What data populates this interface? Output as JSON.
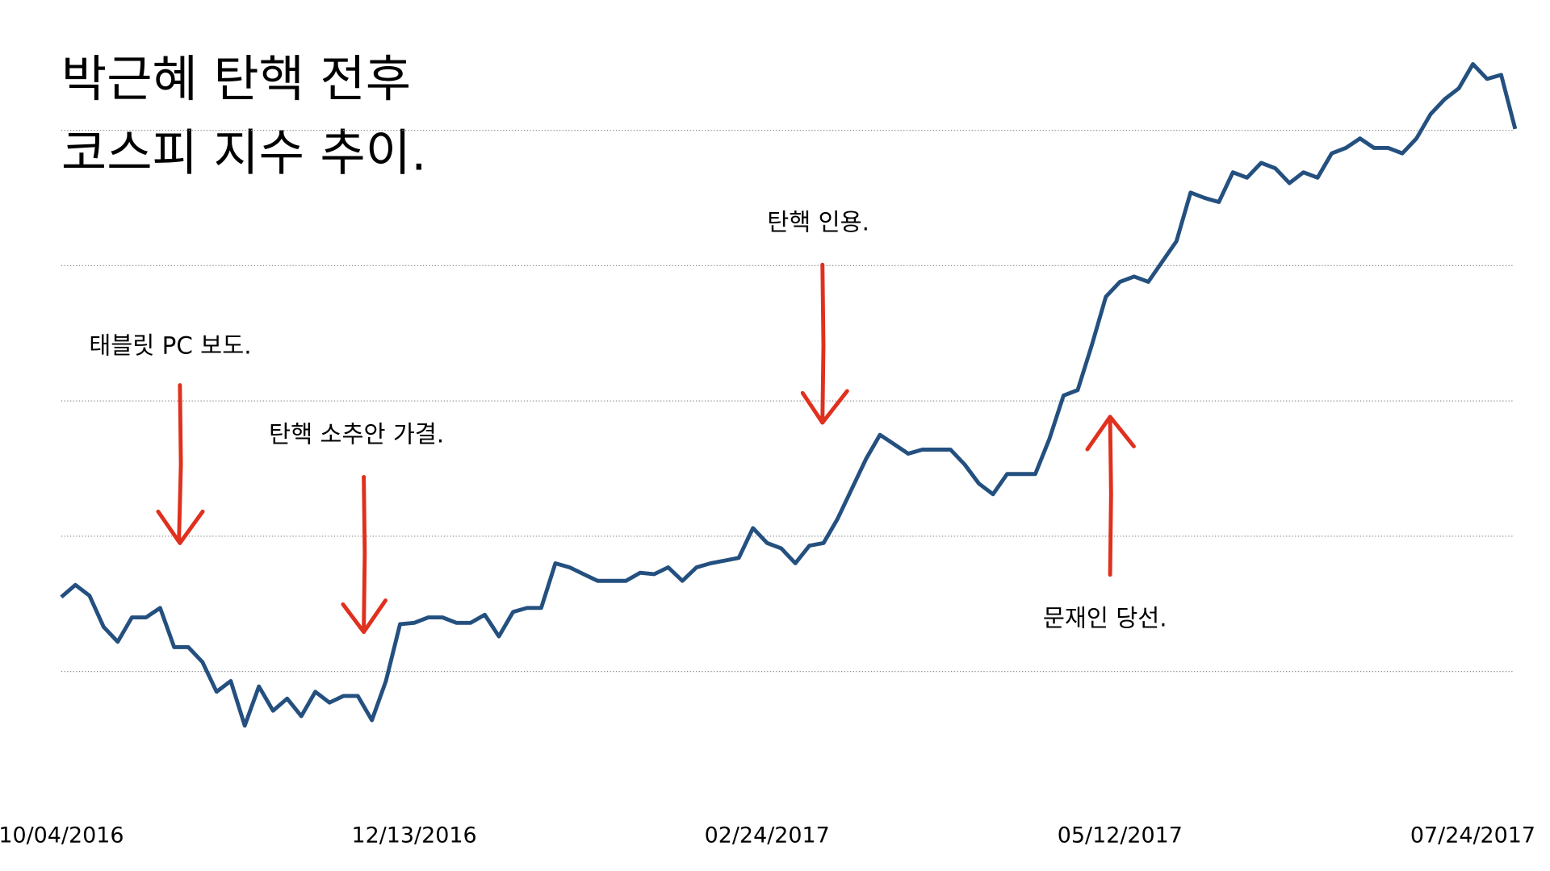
{
  "chart_data": {
    "type": "line",
    "title": [
      "박근혜 탄핵 전후",
      "코스피 지수 추이."
    ],
    "categories": [
      "10/04/2016",
      null,
      null,
      null,
      null,
      null,
      null,
      null,
      null,
      null,
      null,
      null,
      null,
      null,
      null,
      null,
      null,
      null,
      null,
      null,
      null,
      null,
      null,
      null,
      null,
      "12/13/2016",
      null,
      null,
      null,
      null,
      null,
      null,
      null,
      null,
      null,
      null,
      null,
      null,
      null,
      null,
      null,
      null,
      null,
      null,
      null,
      null,
      null,
      null,
      null,
      null,
      "02/24/2017",
      null,
      null,
      null,
      null,
      null,
      null,
      null,
      null,
      null,
      null,
      null,
      null,
      null,
      null,
      null,
      null,
      null,
      null,
      null,
      null,
      null,
      null,
      null,
      null,
      "05/12/2017",
      null,
      null,
      null,
      null,
      null,
      null,
      null,
      null,
      null,
      null,
      null,
      null,
      null,
      null,
      null,
      null,
      null,
      null,
      null,
      null,
      null,
      null,
      null,
      null,
      "07/24/2017",
      null,
      null,
      null
    ],
    "values": [
      2055,
      2064,
      2056,
      2033,
      2022,
      2040,
      2040,
      2047,
      2018,
      2018,
      2007,
      1985,
      1993,
      1960,
      1989,
      1971,
      1980,
      1967,
      1985,
      1977,
      1982,
      1982,
      1964,
      1993,
      2035,
      2036,
      2040,
      2040,
      2036,
      2036,
      2042,
      2026,
      2044,
      2047,
      2047,
      2080,
      2077,
      2072,
      2067,
      2067,
      2067,
      2073,
      2072,
      2077,
      2067,
      2077,
      2080,
      2082,
      2084,
      2106,
      2095,
      2091,
      2080,
      2093,
      2095,
      2113,
      2135,
      2157,
      2175,
      2168,
      2161,
      2164,
      2164,
      2164,
      2153,
      2139,
      2131,
      2146,
      2146,
      2146,
      2172,
      2204,
      2208,
      2241,
      2277,
      2288,
      2292,
      2288,
      2303,
      2318,
      2354,
      2350,
      2347,
      2369,
      2365,
      2376,
      2372,
      2361,
      2369,
      2365,
      2383,
      2387,
      2394,
      2387,
      2387,
      2383,
      2394,
      2412,
      2423,
      2431,
      2449,
      2438,
      2441,
      2401
    ],
    "color": "#24507f",
    "ylim": [
      1900,
      2460
    ],
    "yticks": [
      2000,
      2100,
      2200,
      2300,
      2400
    ],
    "grid": true,
    "annotations": [
      "태블릿 PC 보도.",
      "탄핵 소추안 가결.",
      "탄핵 인용.",
      "문재인 당선."
    ]
  }
}
